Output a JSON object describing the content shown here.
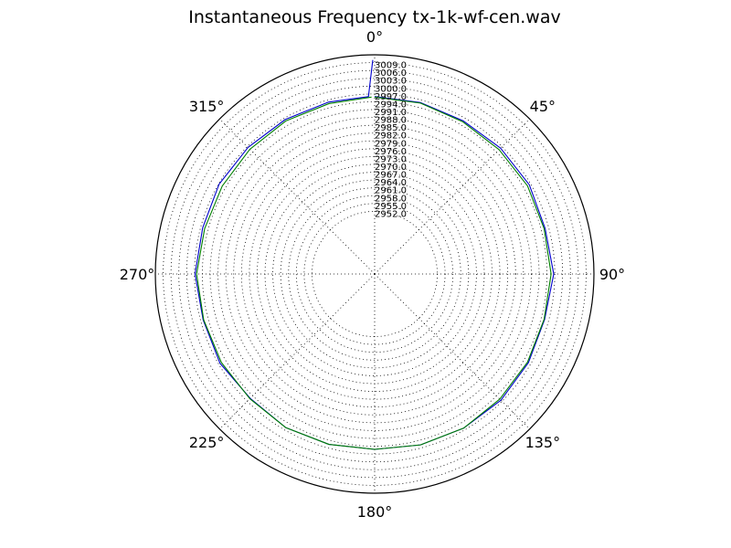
{
  "chart_data": {
    "type": "line",
    "projection": "polar",
    "title": "Instantaneous Frequency  tx-1k-wf-cen.wav",
    "theta_zero": "top",
    "theta_direction": "clockwise",
    "theta_ticks": [
      0,
      45,
      90,
      135,
      180,
      225,
      270,
      315
    ],
    "theta_tick_labels": [
      "0°",
      "45°",
      "90°",
      "135°",
      "180°",
      "225°",
      "270°",
      "315°"
    ],
    "r_ticks": [
      2952.0,
      2955.0,
      2958.0,
      2961.0,
      2964.0,
      2967.0,
      2970.0,
      2973.0,
      2976.0,
      2979.0,
      2982.0,
      2985.0,
      2988.0,
      2991.0,
      2994.0,
      2997.0,
      3000.0,
      3003.0,
      3006.0,
      3009.0
    ],
    "r_tick_labels": [
      "2952.0",
      "2955.0",
      "2958.0",
      "2961.0",
      "2964.0",
      "2967.0",
      "2970.0",
      "2973.0",
      "2976.0",
      "2979.0",
      "2982.0",
      "2985.0",
      "2988.0",
      "2991.0",
      "2994.0",
      "2997.0",
      "3000.0",
      "3003.0",
      "3006.0",
      "3009.0"
    ],
    "rlim": [
      2928.0,
      3012.0
    ],
    "grid": true,
    "series": [
      {
        "color": "#0000cc",
        "theta": [
          0,
          15,
          30,
          45,
          60,
          75,
          90,
          105,
          120,
          135,
          150,
          165,
          180,
          195,
          210,
          225,
          240,
          255,
          270,
          285,
          300,
          315,
          330,
          345,
          358,
          359.5
        ],
        "r": [
          2996.0,
          2996.0,
          2995.8,
          2996.2,
          2996.4,
          2995.6,
          2996.6,
          2995.4,
          2996.0,
          2996.4,
          2996.2,
          2995.8,
          2995.2,
          2995.6,
          2996.0,
          2995.4,
          2996.4,
          2996.0,
          2996.8,
          2996.2,
          2996.8,
          2996.6,
          2996.4,
          2996.2,
          2996.0,
          3010.0
        ]
      },
      {
        "color": "#008000",
        "theta": [
          0,
          15,
          30,
          45,
          60,
          75,
          90,
          105,
          120,
          135,
          150,
          165,
          180,
          195,
          210,
          225,
          240,
          255,
          270,
          285,
          300,
          315,
          330,
          345,
          359
        ],
        "r": [
          2995.8,
          2995.8,
          2995.4,
          2995.4,
          2995.6,
          2995.2,
          2995.6,
          2995.2,
          2995.6,
          2995.8,
          2996.2,
          2995.8,
          2995.2,
          2995.6,
          2996.0,
          2995.6,
          2995.8,
          2995.8,
          2996.2,
          2995.4,
          2995.4,
          2995.6,
          2995.8,
          2995.6,
          2995.8
        ]
      }
    ]
  }
}
